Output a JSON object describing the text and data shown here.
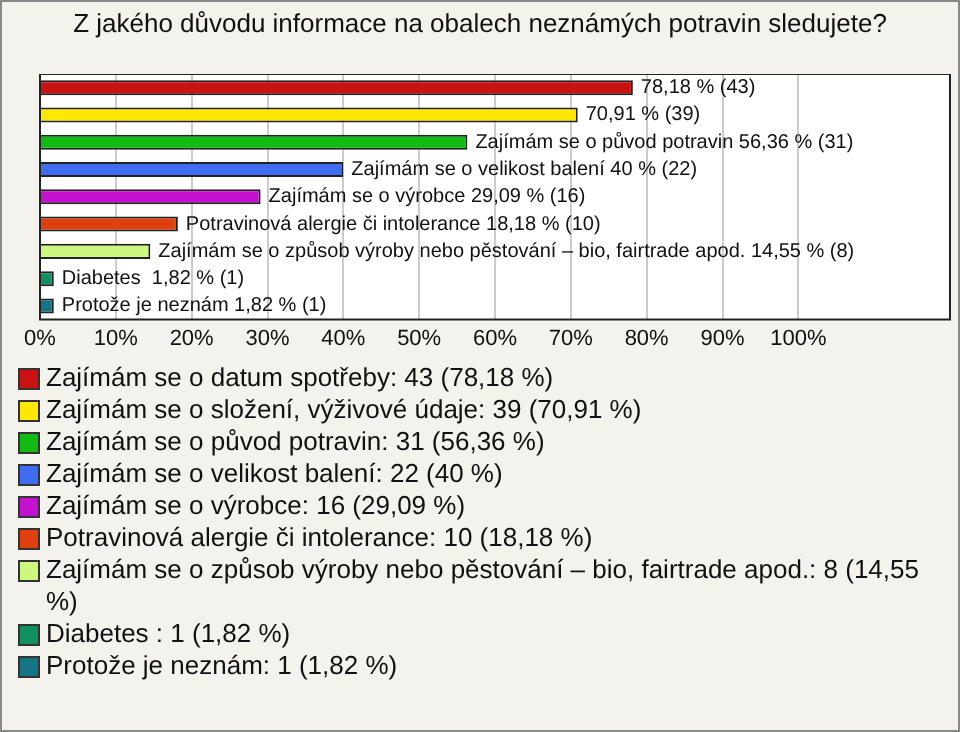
{
  "chart_data": {
    "type": "bar",
    "orientation": "horizontal",
    "stacked": true,
    "title": "Z jakého důvodu informace na obalech neznámých potravin sledujete?",
    "categories": [
      null,
      null,
      null,
      null,
      null,
      null,
      null,
      null,
      null
    ],
    "xlim": [
      0,
      120
    ],
    "xticks": [
      {
        "value": 0,
        "label": "0%"
      },
      {
        "value": 10,
        "label": "10%"
      },
      {
        "value": 20,
        "label": "20%"
      },
      {
        "value": 30,
        "label": "30%"
      },
      {
        "value": 40,
        "label": "40%"
      },
      {
        "value": 50,
        "label": "50%"
      },
      {
        "value": 60,
        "label": "60%"
      },
      {
        "value": 70,
        "label": "70%"
      },
      {
        "value": 80,
        "label": "80%"
      },
      {
        "value": 90,
        "label": "90%"
      },
      {
        "value": 100,
        "label": "100%"
      }
    ],
    "grid": "x",
    "legend": "bottom",
    "series": [
      {
        "name": "Zajímám se o datum spotřeby: 43 (78,18 %)",
        "color": "#cc1111",
        "values": [
          78.18,
          null,
          null,
          null,
          null,
          null,
          null,
          null,
          null
        ],
        "value_labels": [
          "78,18 % (43)",
          null,
          null,
          null,
          null,
          null,
          null,
          null,
          null
        ]
      },
      {
        "name": "Zajímám se o složení, výživové údaje: 39 (70,91 %)",
        "color": "#ffe800",
        "values": [
          null,
          70.91,
          null,
          null,
          null,
          null,
          null,
          null,
          null
        ],
        "value_labels": [
          null,
          "70,91 % (39)",
          null,
          null,
          null,
          null,
          null,
          null,
          null
        ]
      },
      {
        "name": "Zajímám se o původ potravin: 31 (56,36 %)",
        "color": "#11bb11",
        "values": [
          null,
          null,
          56.36,
          null,
          null,
          null,
          null,
          null,
          null
        ],
        "value_labels": [
          null,
          null,
          "Zajímám se o původ potravin 56,36 % (31)",
          null,
          null,
          null,
          null,
          null,
          null
        ]
      },
      {
        "name": "Zajímám se o velikost balení: 22 (40 %)",
        "color": "#3f6cf0",
        "values": [
          null,
          null,
          null,
          40,
          null,
          null,
          null,
          null,
          null
        ],
        "value_labels": [
          null,
          null,
          null,
          "Zajímám se o velikost balení 40 % (22)",
          null,
          null,
          null,
          null,
          null
        ]
      },
      {
        "name": "Zajímám se o výrobce: 16 (29,09 %)",
        "color": "#c411d0",
        "values": [
          null,
          null,
          null,
          null,
          29.09,
          null,
          null,
          null,
          null
        ],
        "value_labels": [
          null,
          null,
          null,
          null,
          "Zajímám se o výrobce 29,09 % (16)",
          null,
          null,
          null,
          null
        ]
      },
      {
        "name": "Potravinová alergie či intolerance: 10 (18,18 %)",
        "color": "#e0400f",
        "values": [
          null,
          null,
          null,
          null,
          null,
          18.18,
          null,
          null,
          null
        ],
        "value_labels": [
          null,
          null,
          null,
          null,
          null,
          "Potravinová alergie či intolerance 18,18 % (10)",
          null,
          null,
          null
        ]
      },
      {
        "name": "Zajímám se o způsob výroby nebo pěstování – bio, fairtrade apod.: 8 (14,55 %)",
        "color": "#ccf880",
        "values": [
          null,
          null,
          null,
          null,
          null,
          null,
          14.55,
          null,
          null
        ],
        "value_labels": [
          null,
          null,
          null,
          null,
          null,
          null,
          "Zajímám se o způsob výroby nebo pěstování – bio, fairtrade apod. 14,55 % (8)",
          null,
          null
        ]
      },
      {
        "name": "Diabetes : 1 (1,82 %)",
        "color": "#119060",
        "values": [
          null,
          null,
          null,
          null,
          null,
          null,
          null,
          1.82,
          null
        ],
        "value_labels": [
          null,
          null,
          null,
          null,
          null,
          null,
          null,
          "Diabetes  1,82 % (1)",
          null
        ]
      },
      {
        "name": "Protože je neznám: 1 (1,82 %)",
        "color": "#137585",
        "values": [
          null,
          null,
          null,
          null,
          null,
          null,
          null,
          null,
          1.82
        ],
        "value_labels": [
          null,
          null,
          null,
          null,
          null,
          null,
          null,
          null,
          "Protože je neznám 1,82 % (1)"
        ]
      }
    ]
  }
}
